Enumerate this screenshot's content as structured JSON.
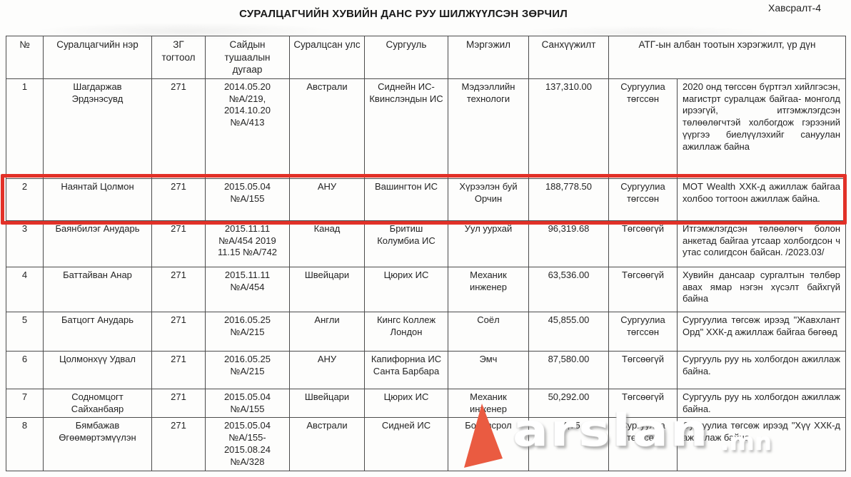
{
  "page": {
    "appendix_label": "Хавсралт-4",
    "title": "СУРАЛЦАГЧИЙН ХУВИЙН ДАНС РУУ ШИЛЖҮҮЛСЭН ЗӨРЧИЛ"
  },
  "table": {
    "headers": {
      "no": "№",
      "name": "Суралцагчийн нэр",
      "resolution": "ЗГ тогтоол",
      "order": "Сайдын тушаалын дугаар",
      "country": "Суралцсан улс",
      "school": "Сургууль",
      "profession": "Мэргэжил",
      "funding": "Санхүүжилт",
      "implementation": "АТГ-ын албан тоотын хэрэгжилт, үр дүн"
    },
    "rows": [
      {
        "no": "1",
        "name": "Шагдаржав Эрдэнэсувд",
        "resolution": "271",
        "order": "2014.05.20 №А/219, 2014.10.20 №А/413",
        "country": "Австрали",
        "school": "Сиднейн ИС-Квинслэндын ИС",
        "profession": "Мэдээллийн технологи",
        "funding": "137,310.00",
        "status": "Сургуулиа төгссөн",
        "result": "2020 онд төгссөн бүртгэл хийлгэсэн, магистрт суралцаж байгаа- монголд ирээгүй, итгэмжлэгдсэн төлөөлөгчтэй холбогдож гэрээний үүргээ биелүүлэхийг сануулан ажиллаж байна"
      },
      {
        "no": "2",
        "name": "Наянтай Цолмон",
        "resolution": "271",
        "order": "2015.05.04 №А/155",
        "country": "АНУ",
        "school": "Вашингтон ИС",
        "profession": "Хүрээлэн буй Орчин",
        "funding": "188,778.50",
        "status": "Сургуулиа төгссөн",
        "result": "МОТ Wealth ХХК-д ажиллаж байгаа холбоо тогтоон ажиллаж байна."
      },
      {
        "no": "3",
        "name": "Баянбилэг Анударь",
        "resolution": "271",
        "order": "2015.11.11 №А/454 2019 11.15 №А/742",
        "country": "Канад",
        "school": "Бритиш Колумбиа ИС",
        "profession": "Уул уурхай",
        "funding": "96,319.68",
        "status": "Төгсөөгүй",
        "result": "Итгэмжлэгдсэн төлөөлөгч болон анкетад байгаа утсаар холбогдсон ч  утас солигдсон байсан. /2023.03/"
      },
      {
        "no": "4",
        "name": "Баттайван Анар",
        "resolution": "271",
        "order": "2015.11.11 №А/454",
        "country": "Швейцари",
        "school": "Цюрих ИС",
        "profession": "Механик инженер",
        "funding": "63,536.00",
        "status": "Төгсөөгүй",
        "result": "Хувийн дансаар сургалтын төлбөр авах ямар нэгэн хүсэлт байхгүй байна"
      },
      {
        "no": "5",
        "name": "Батцогт Анударь",
        "resolution": "271",
        "order": "2016.05.25 №А/215",
        "country": "Англи",
        "school": "Кингс Коллеж Лондон",
        "profession": "Соёл",
        "funding": "45,855.00",
        "status": "Сургуулиа төгссөн",
        "result": "Сургуулиа төгсөж ирээд \"Жавхлант Орд\" ХХК-д ажиллаж байгаа бөгөөд"
      },
      {
        "no": "6",
        "name": "Цолмонхүү Удвал",
        "resolution": "271",
        "order": "2016.05.25 №А/215",
        "country": "АНУ",
        "school": "Капифорниа ИС Санта Барбара",
        "profession": "Эмч",
        "funding": "87,580.00",
        "status": "Төгсөөгүй",
        "result": "Сургууль руу нь холбогдон ажиллаж байна."
      },
      {
        "no": "7",
        "name": "Содномцогт Сайханбаяр",
        "resolution": "271",
        "order": "2015.05.04 №А/155",
        "country": "Швейцари",
        "school": "Цюрих ИС",
        "profession": "Механик инженер",
        "funding": "50,292.00",
        "status": "Төгсөөгүй",
        "result": "Сургууль руу нь холбогдон ажиллаж байна."
      },
      {
        "no": "8",
        "name": "Бямбажав Өгөөмөртэмүүлэн",
        "resolution": "271",
        "order": "2015.05.04 №А/155- 2015.08.24 №А/328",
        "country": "Австрали",
        "school": "Сидней ИС",
        "profession": "Боловсрол",
        "funding": "14,75",
        "status": "Сургуулиа төгссөн",
        "result": "Сургуулиа төгсөж ирээд \"Хүү ХХК-д ажиллаж байна."
      }
    ]
  },
  "highlight": {
    "row_number": 2,
    "color": "#e23128"
  },
  "watermark": {
    "text": "arslan",
    "suffix": ".mn",
    "triangle_color": "#ea5b41"
  }
}
